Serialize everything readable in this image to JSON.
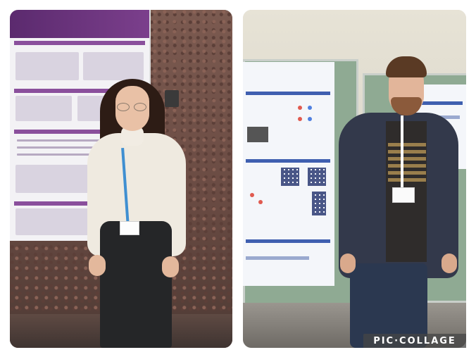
{
  "watermark": {
    "text": "PIC·COLLAGE"
  },
  "palette": {
    "left_background": "#6e5048",
    "right_background": "#d9d6cd",
    "poster_accent_purple": "#5b2a6e",
    "poster_accent_blue": "#3f5fb0",
    "lanyard_blue": "#3f8fd1"
  },
  "panels": [
    {
      "id": "left",
      "subject": "person-white-turtleneck-glasses"
    },
    {
      "id": "right",
      "subject": "person-hoodie-beard"
    }
  ]
}
